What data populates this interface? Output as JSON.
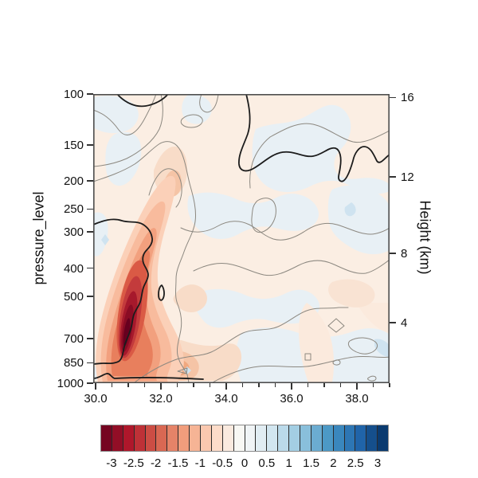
{
  "axes": {
    "y_left": {
      "label": "pressure_level",
      "tick_labels": [
        "100",
        "150",
        "200",
        "250",
        "300",
        "400",
        "500",
        "700",
        "850",
        "1000"
      ]
    },
    "y_right": {
      "label": "Height (km)",
      "tick_labels": [
        "4",
        "8",
        "12",
        "16"
      ]
    },
    "x_bottom": {
      "tick_labels": [
        "30.0",
        "32.0",
        "34.0",
        "36.0",
        "38.0"
      ],
      "minor_step": 0.5
    }
  },
  "colorbar": {
    "tick_labels": [
      "-3",
      "-2.5",
      "-2",
      "-1.5",
      "-1",
      "-0.5",
      "0",
      "0.5",
      "1",
      "1.5",
      "2",
      "2.5",
      "3"
    ],
    "cell_colors": [
      "#750521",
      "#920e26",
      "#af172b",
      "#be3137",
      "#cc4d44",
      "#d96853",
      "#e58368",
      "#f19d7c",
      "#f6b495",
      "#fac8af",
      "#fddcc9",
      "#faeadf",
      "#f8f8f4",
      "#f0f4f6",
      "#e1edf3",
      "#d2e6f0",
      "#bbdaea",
      "#a3cee3",
      "#89bfdb",
      "#6bacd1",
      "#4c99c6",
      "#3a87bd",
      "#2d76b4",
      "#2064a9",
      "#154f8c",
      "#0a3a6f"
    ]
  },
  "chart_data": {
    "type": "heatmap",
    "subtype": "filled contour vertical cross-section with overlaid line contours",
    "title": "",
    "xlabel": "",
    "ylabel": "pressure_level",
    "ylabel_right": "Height (km)",
    "x_ticks": [
      30.0,
      32.0,
      34.0,
      36.0,
      38.0
    ],
    "x_minor_tick_step": 0.5,
    "x_range": [
      30.0,
      39.0
    ],
    "y_ticks_pressure_hPa": [
      100,
      150,
      200,
      250,
      300,
      400,
      500,
      700,
      850,
      1000
    ],
    "y_axis_scale": "log10 pressure, inverted (100 hPa at top, 1000 hPa at bottom)",
    "right_axis_ticks_height_km": [
      4,
      8,
      12,
      16
    ],
    "color_levels": {
      "min": -3.25,
      "max": 3.25,
      "step": 0.25,
      "labeled": [
        -3,
        -2.5,
        -2,
        -1.5,
        -1,
        -0.5,
        0,
        0.5,
        1,
        1.5,
        2,
        2.5,
        3
      ]
    },
    "palette": "RdBu diverging: dark red = -3, near-white = 0, dark blue = +3",
    "features": [
      {
        "name": "deep-negative-plume",
        "description": "elongated dark-red anomaly tilted rightward with height",
        "x_center": 31.1,
        "pressure_span_hPa": [
          950,
          380
        ],
        "peak": {
          "x": 31.0,
          "pressure_hPa": 620,
          "value": -3
        }
      },
      {
        "name": "secondary-negative-patch",
        "x_center": 32.4,
        "pressure_hPa": 950,
        "value_approx": -1
      },
      {
        "name": "warm-hill-patch",
        "x_center": 32.4,
        "pressure_hPa": 200,
        "value_approx": -0.75
      },
      {
        "name": "background-field",
        "description": "weak values between -0.5 and +0.5; pale red and pale blue patches with thin gray contour lines"
      },
      {
        "name": "zero-contour",
        "description": "thick black contour: arc at top near 100 hPa, line across upper right near 200 hPa, line from left edge near 290 hPa wrapping the plume down to the surface, and along the bottom near 1000 hPa"
      }
    ]
  }
}
